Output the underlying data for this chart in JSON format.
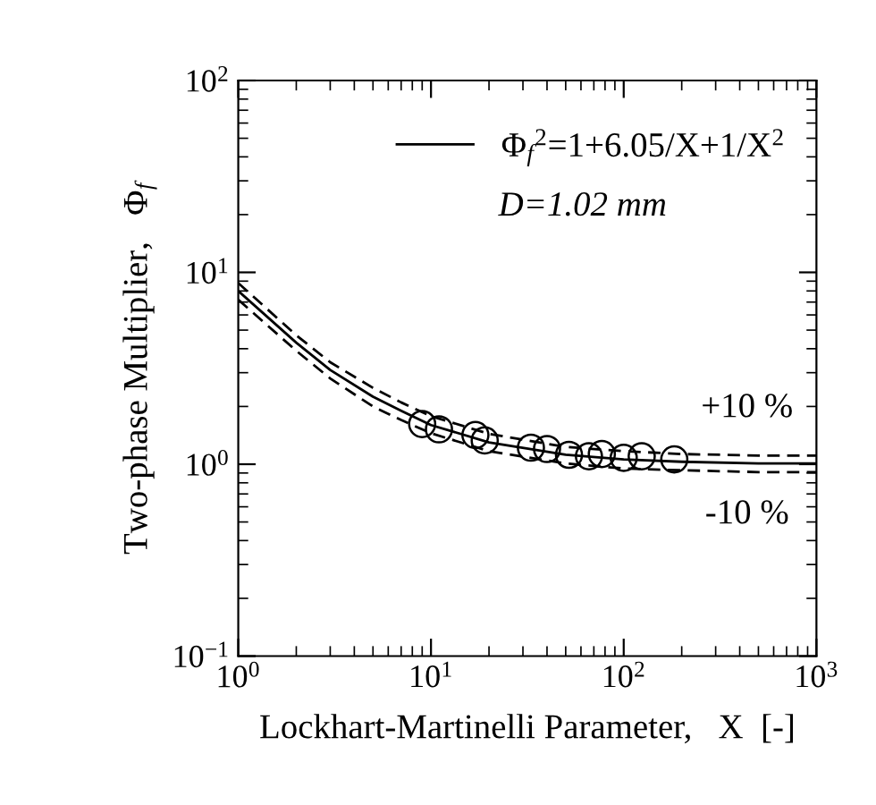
{
  "chart_data": {
    "type": "line",
    "xlabel": "Lockhart-Martinelli Parameter,   X  [-]",
    "ylabel": "Two-phase Multiplier,   Φ$_{f}$",
    "log": "xy",
    "xlim": [
      1,
      1000
    ],
    "ylim": [
      0.1,
      100
    ],
    "xticks": [
      {
        "value": 1,
        "label": "10$^{0}$"
      },
      {
        "value": 10,
        "label": "10$^{1}$"
      },
      {
        "value": 100,
        "label": "10$^{2}$"
      },
      {
        "value": 1000,
        "label": "10$^{3}$"
      }
    ],
    "yticks": [
      {
        "value": 0.1,
        "label": "10$^{−1}$"
      },
      {
        "value": 1,
        "label": "10$^{0}$"
      },
      {
        "value": 10,
        "label": "10$^{1}$"
      },
      {
        "value": 100,
        "label": "10$^{2}$"
      }
    ],
    "grid": false,
    "legend": "top right",
    "series": [
      {
        "name": "Φ$_{f}$$^{2}$=1+6.05/X+1/X$^{2}$",
        "line_style": "solid",
        "color": "#000000",
        "x": [
          1,
          2,
          3,
          5,
          7,
          10,
          20,
          50,
          100,
          200,
          500,
          1000
        ],
        "values": [
          8.0,
          4.3,
          3.1,
          2.25,
          1.9,
          1.6,
          1.3,
          1.12,
          1.06,
          1.03,
          1.01,
          1.01
        ]
      },
      {
        "line_style": "dashed",
        "color": "#000000",
        "x": [
          1,
          2,
          3,
          5,
          7,
          10,
          20,
          50,
          100,
          200,
          500,
          1000
        ],
        "values": [
          8.8,
          4.7,
          3.4,
          2.5,
          2.1,
          1.78,
          1.44,
          1.23,
          1.17,
          1.13,
          1.11,
          1.11
        ]
      },
      {
        "line_style": "dashed",
        "color": "#000000",
        "x": [
          1,
          2,
          3,
          5,
          7,
          10,
          20,
          50,
          100,
          200,
          500,
          1000
        ],
        "values": [
          7.2,
          3.9,
          2.8,
          2.0,
          1.7,
          1.45,
          1.17,
          1.01,
          0.95,
          0.93,
          0.91,
          0.91
        ]
      },
      {
        "type": "scatter",
        "marker": "circle",
        "color": "#000000",
        "x": [
          9.0,
          11,
          17,
          19,
          33,
          40,
          52,
          66,
          77,
          100,
          124,
          183
        ],
        "values": [
          1.62,
          1.52,
          1.42,
          1.33,
          1.22,
          1.2,
          1.12,
          1.1,
          1.13,
          1.08,
          1.1,
          1.06
        ]
      }
    ],
    "annotations": [
      "D=1.02 mm",
      "+10 %",
      "-10 %"
    ]
  }
}
